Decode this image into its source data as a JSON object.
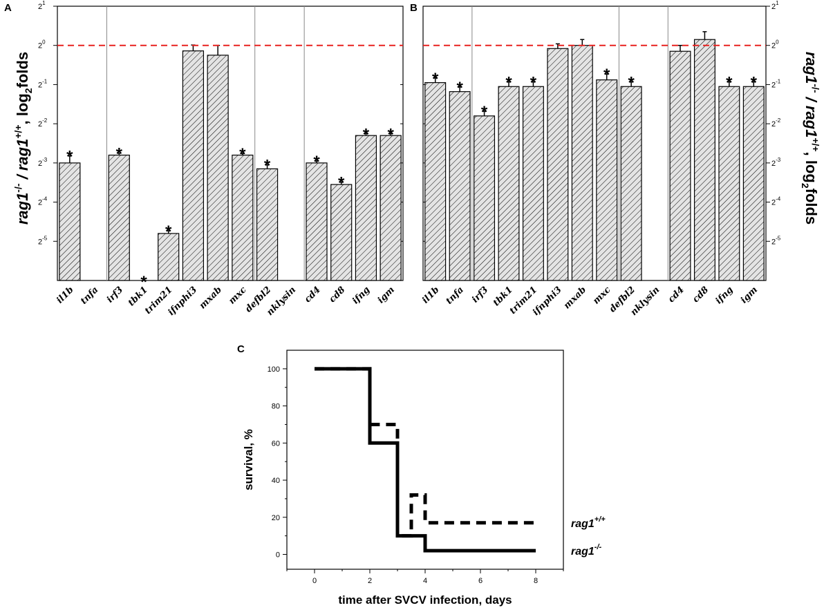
{
  "figure": {
    "panel_a_letter": "A",
    "panel_b_letter": "B",
    "panel_c_letter": "C",
    "ylabel_ab": {
      "prefix": "rag1",
      "sup1": "-/-",
      "mid": " / rag1",
      "sup2": "+/+",
      "suffix": ", log",
      "sub": "2",
      "end": "folds"
    },
    "y_tick_base": "2",
    "colors": {
      "reference_line": "#e8201e",
      "bar_fill": "#e4e4e4",
      "ink": "#000000"
    }
  },
  "chart_data": [
    {
      "panel": "A",
      "type": "bar",
      "title": "",
      "ylabel": "rag1-/- / rag1+/+, log2folds",
      "yscale": "log2",
      "ylim_exponents": [
        -6,
        1
      ],
      "y_ticks": [
        1,
        0,
        -1,
        -2,
        -3,
        -4,
        -5
      ],
      "reference_line": 0,
      "groups": [
        [
          "il1b",
          "tnfa"
        ],
        [
          "irf3",
          "tbk1",
          "trim21",
          "ifnphi3",
          "mxab",
          "mxc"
        ],
        [
          "defbl2",
          "nklysin"
        ],
        [
          "cd4",
          "cd8",
          "ifng",
          "igm"
        ]
      ],
      "categories": [
        "il1b",
        "tnfa",
        "irf3",
        "tbk1",
        "trim21",
        "ifnphi3",
        "mxab",
        "mxc",
        "defbl2",
        "nklysin",
        "cd4",
        "cd8",
        "ifng",
        "igm"
      ],
      "values": [
        -3.0,
        null,
        -2.8,
        null,
        -4.8,
        -0.14,
        -0.25,
        -2.8,
        -3.15,
        null,
        -3.0,
        -3.55,
        -2.3,
        -2.3
      ],
      "errors": [
        0.18,
        null,
        0.05,
        null,
        0.07,
        0.15,
        0.25,
        0.04,
        0.1,
        null,
        0.05,
        0.06,
        0.05,
        0.05
      ],
      "significant": [
        true,
        false,
        true,
        true,
        true,
        false,
        false,
        true,
        true,
        false,
        true,
        true,
        true,
        true
      ]
    },
    {
      "panel": "B",
      "type": "bar",
      "title": "",
      "ylabel": "rag1-/- / rag1+/+, log2folds",
      "yscale": "log2",
      "ylim_exponents": [
        -6,
        1
      ],
      "y_ticks": [
        1,
        0,
        -1,
        -2,
        -3,
        -4,
        -5
      ],
      "reference_line": 0,
      "groups": [
        [
          "il1b",
          "tnfa"
        ],
        [
          "irf3",
          "tbk1",
          "trim21",
          "ifnphi3",
          "mxab",
          "mxc"
        ],
        [
          "defbl2",
          "nklysin"
        ],
        [
          "cd4",
          "cd8",
          "ifng",
          "igm"
        ]
      ],
      "categories": [
        "il1b",
        "tnfa",
        "irf3",
        "tbk1",
        "trim21",
        "ifnphi3",
        "mxab",
        "mxc",
        "defbl2",
        "nklysin",
        "cd4",
        "cd8",
        "ifng",
        "igm"
      ],
      "values": [
        -0.95,
        -1.18,
        -1.8,
        -1.05,
        -1.05,
        -0.08,
        0.0,
        -0.88,
        -1.05,
        null,
        -0.15,
        0.15,
        -1.05,
        -1.05
      ],
      "errors": [
        0.12,
        0.12,
        0.12,
        0.12,
        0.12,
        0.12,
        0.15,
        0.15,
        0.12,
        null,
        0.15,
        0.2,
        0.12,
        0.12
      ],
      "significant": [
        true,
        true,
        true,
        true,
        true,
        false,
        false,
        true,
        true,
        false,
        false,
        false,
        true,
        true
      ]
    },
    {
      "panel": "C",
      "type": "line",
      "title": "",
      "xlabel": "time after SVCV infection, days",
      "ylabel": "survival, %",
      "xlim": [
        -1,
        9
      ],
      "ylim": [
        -8,
        110
      ],
      "x_ticks": [
        0,
        2,
        4,
        6,
        8
      ],
      "y_ticks": [
        0,
        20,
        40,
        60,
        80,
        100
      ],
      "series": [
        {
          "name": "rag1+/+",
          "label_base": "rag1",
          "label_sup": "+/+",
          "style": "dashed",
          "points": [
            [
              0,
              100
            ],
            [
              2,
              100
            ],
            [
              2,
              70
            ],
            [
              2.4,
              70
            ],
            [
              2.4,
              70
            ],
            [
              3,
              70
            ],
            [
              3,
              10
            ],
            [
              3.5,
              10
            ],
            [
              3.5,
              32
            ],
            [
              4,
              32
            ],
            [
              4,
              17
            ],
            [
              8,
              17
            ]
          ]
        },
        {
          "name": "rag1-/-",
          "label_base": "rag1",
          "label_sup": "-/-",
          "style": "solid",
          "points": [
            [
              0,
              100
            ],
            [
              2,
              100
            ],
            [
              2,
              60
            ],
            [
              3,
              60
            ],
            [
              3,
              10
            ],
            [
              4,
              10
            ],
            [
              4,
              2
            ],
            [
              8,
              2
            ]
          ]
        }
      ]
    }
  ]
}
